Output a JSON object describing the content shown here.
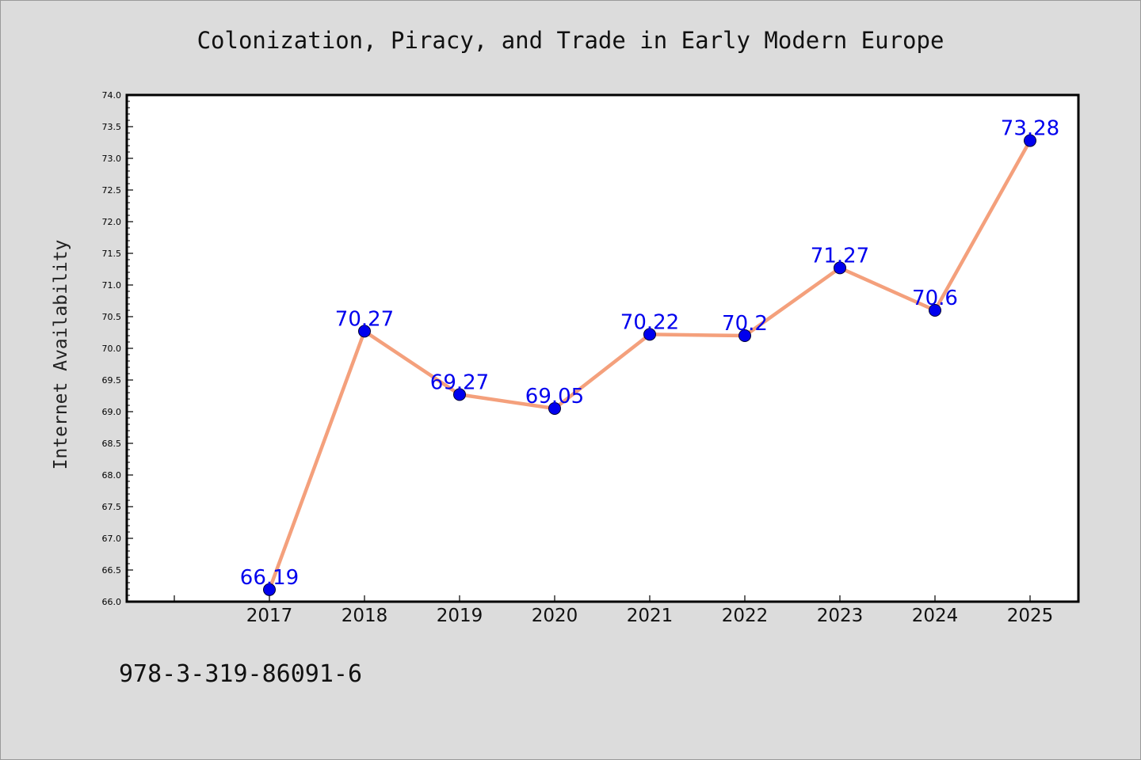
{
  "chart_data": {
    "type": "line",
    "title": "Colonization, Piracy, and Trade in Early Modern Europe",
    "xlabel": "",
    "ylabel": "Internet Availability",
    "categories": [
      "2017",
      "2018",
      "2019",
      "2020",
      "2021",
      "2022",
      "2023",
      "2024",
      "2025"
    ],
    "series": [
      {
        "values": [
          66.19,
          70.27,
          69.27,
          69.05,
          70.22,
          70.2,
          71.27,
          70.6,
          73.28
        ],
        "labels": [
          "66.19",
          "70.27",
          "69.27",
          "69.05",
          "70.22",
          "70.2",
          "71.27",
          "70.6",
          "73.28"
        ]
      }
    ],
    "ylim": [
      66.0,
      74.0
    ],
    "yticks": [
      "66.0",
      "66.5",
      "67.0",
      "67.5",
      "68.0",
      "68.5",
      "69.0",
      "69.5",
      "70.0",
      "70.5",
      "71.0",
      "71.5",
      "72.0",
      "72.5",
      "73.0",
      "73.5",
      "74.0"
    ],
    "grid": false,
    "legend": "none",
    "colors": {
      "line": "#f4a07c",
      "marker": "#0000ee",
      "marker_edge": "#000033",
      "data_label": "#0000ee",
      "background": "#dcdcdc",
      "plot_background": "#ffffff"
    }
  },
  "footnote": "978-3-319-86091-6"
}
